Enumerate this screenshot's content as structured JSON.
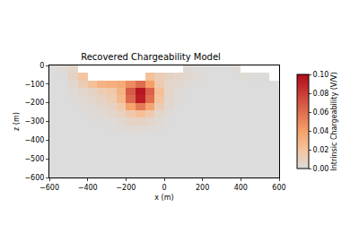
{
  "chart_data": {
    "type": "heatmap",
    "title": "Recovered Chargeability Model",
    "xlabel": "x (m)",
    "ylabel": "z (m)",
    "colorbar_label": "Intrinsic Chargeability (V/V)",
    "color": "Plasma",
    "x": [
      -575,
      -525,
      -475,
      -425,
      -375,
      -325,
      -275,
      -225,
      -175,
      -125,
      -75,
      -25,
      25,
      75,
      125,
      175,
      225,
      275,
      325,
      375,
      425,
      475,
      525,
      575
    ],
    "y": [
      -20,
      -60,
      -100,
      -140,
      -180,
      -220,
      -260,
      -300,
      -340,
      -380,
      -420,
      -460,
      -500,
      -540,
      -580
    ],
    "values": [
      [
        0,
        0.002,
        0.006,
        null,
        null,
        null,
        null,
        null,
        null,
        null,
        null,
        null,
        null,
        null,
        0.003,
        0.001,
        0,
        0,
        0,
        0.002,
        null,
        null,
        null,
        null
      ],
      [
        0,
        0.001,
        0.008,
        0.018,
        null,
        null,
        null,
        null,
        null,
        null,
        0.022,
        0.012,
        0.008,
        0.006,
        0.004,
        0.002,
        0,
        0,
        0,
        0.001,
        0.002,
        0.001,
        0.001,
        null
      ],
      [
        0,
        0,
        0.004,
        0.012,
        0.022,
        0.03,
        0.032,
        0.035,
        0.048,
        0.06,
        0.04,
        0.015,
        0.006,
        0.004,
        0.002,
        0.001,
        0,
        0,
        0,
        0,
        0,
        0.001,
        0,
        0
      ],
      [
        0,
        0,
        0.002,
        0.005,
        0.008,
        0.012,
        0.016,
        0.03,
        0.068,
        0.095,
        0.065,
        0.022,
        0.006,
        0.002,
        0.001,
        0,
        0,
        0,
        0,
        0,
        0,
        0,
        0,
        0
      ],
      [
        0,
        0,
        0.001,
        0.003,
        0.005,
        0.008,
        0.012,
        0.026,
        0.062,
        0.092,
        0.06,
        0.02,
        0.005,
        0.002,
        0.001,
        0,
        0,
        0,
        0,
        0,
        0,
        0,
        0,
        0
      ],
      [
        0,
        0,
        0,
        0.002,
        0.003,
        0.005,
        0.008,
        0.016,
        0.038,
        0.055,
        0.036,
        0.012,
        0.004,
        0.001,
        0,
        0,
        0,
        0,
        0,
        0,
        0,
        0,
        0,
        0
      ],
      [
        0,
        0,
        0,
        0.001,
        0.002,
        0.003,
        0.005,
        0.009,
        0.016,
        0.022,
        0.015,
        0.006,
        0.002,
        0,
        0,
        0,
        0,
        0,
        0,
        0,
        0,
        0,
        0,
        0
      ],
      [
        0,
        0,
        0,
        0,
        0.001,
        0.001,
        0.002,
        0.004,
        0.007,
        0.009,
        0.006,
        0.003,
        0.001,
        0,
        0,
        0,
        0,
        0,
        0,
        0,
        0,
        0,
        0,
        0
      ],
      [
        0,
        0,
        0,
        0,
        0,
        0,
        0.001,
        0.002,
        0.003,
        0.003,
        0.002,
        0.001,
        0,
        0,
        0,
        0,
        0,
        0,
        0,
        0,
        0,
        0,
        0,
        0
      ],
      [
        0,
        0,
        0,
        0,
        0,
        0,
        0,
        0,
        0,
        0,
        0,
        0,
        0,
        0,
        0,
        0,
        0,
        0,
        0,
        0,
        0,
        0,
        0,
        0
      ],
      [
        0,
        0,
        0,
        0,
        0,
        0,
        0,
        0,
        0,
        0,
        0,
        0,
        0,
        0,
        0,
        0,
        0,
        0,
        0,
        0,
        0,
        0,
        0,
        0
      ],
      [
        0,
        0,
        0,
        0,
        0,
        0,
        0,
        0,
        0,
        0,
        0,
        0,
        0,
        0,
        0,
        0,
        0,
        0,
        0,
        0,
        0,
        0,
        0,
        0
      ],
      [
        0,
        0,
        0,
        0,
        0,
        0,
        0,
        0,
        0,
        0,
        0,
        0,
        0,
        0,
        0,
        0,
        0,
        0,
        0,
        0,
        0,
        0,
        0,
        0
      ],
      [
        0,
        0,
        0,
        0,
        0,
        0,
        0,
        0,
        0,
        0,
        0,
        0,
        0,
        0,
        0,
        0,
        0,
        0,
        0,
        0,
        0,
        0,
        0,
        0
      ],
      [
        0,
        0,
        0,
        0,
        0,
        0,
        0,
        0,
        0,
        0,
        0,
        0,
        0,
        0,
        0,
        0,
        0,
        0,
        0,
        0,
        0,
        0,
        0,
        0
      ]
    ],
    "xlim": [
      -600,
      600
    ],
    "ylim": [
      -600,
      0
    ],
    "xticks": [
      {
        "value": -600,
        "label": "−600"
      },
      {
        "value": -400,
        "label": "−400"
      },
      {
        "value": -200,
        "label": "−200"
      },
      0,
      200,
      400,
      600
    ],
    "yticks": [
      {
        "value": -600,
        "label": "−600"
      },
      {
        "value": -500,
        "label": "−500"
      },
      {
        "value": -400,
        "label": "−400"
      },
      {
        "value": -300,
        "label": "−300"
      },
      {
        "value": -200,
        "label": "−200"
      },
      {
        "value": -100,
        "label": "−100"
      },
      0
    ],
    "colorbar_range": [
      0,
      0.1
    ],
    "colorbar_ticks": [
      {
        "value": 0,
        "label": "0.00"
      },
      {
        "value": 0.02,
        "label": "0.02"
      },
      {
        "value": 0.04,
        "label": "0.04"
      },
      {
        "value": 0.06,
        "label": "0.06"
      },
      {
        "value": 0.08,
        "label": "0.08"
      },
      {
        "value": 0.1,
        "label": "0.10"
      }
    ]
  }
}
